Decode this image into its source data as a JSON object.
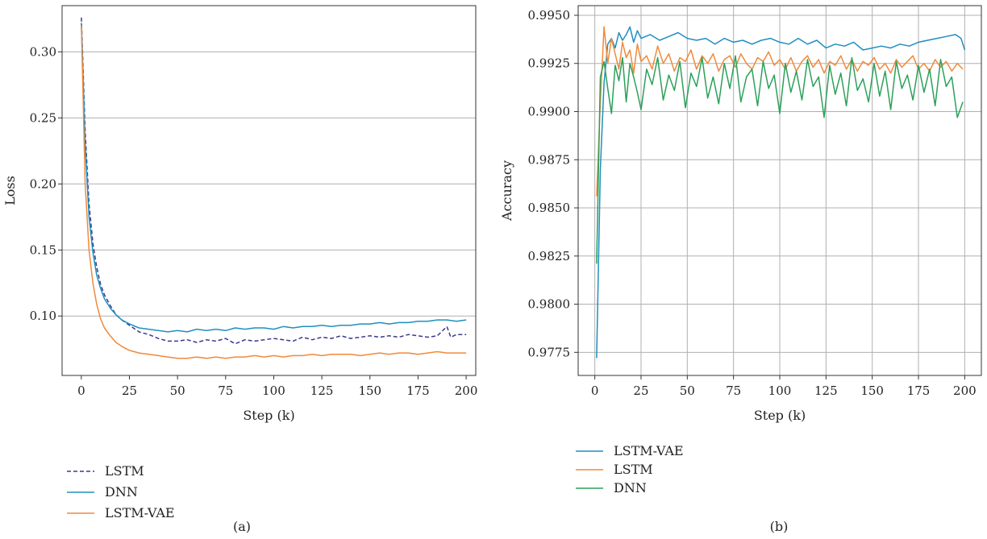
{
  "chart_data": [
    {
      "type": "line",
      "panel_label": "(a)",
      "xlabel": "Step (k)",
      "ylabel": "Loss",
      "xlim": [
        -10,
        205
      ],
      "ylim": [
        0.055,
        0.335
      ],
      "xticks": [
        0,
        25,
        50,
        75,
        100,
        125,
        150,
        175,
        200
      ],
      "xtick_labels": [
        "0",
        "25",
        "50",
        "75",
        "100",
        "125",
        "150",
        "175",
        "200"
      ],
      "yticks": [
        0.1,
        0.15,
        0.2,
        0.25,
        0.3
      ],
      "ytick_labels": [
        "0.10",
        "0.15",
        "0.20",
        "0.25",
        "0.30"
      ],
      "grid": "horizontal",
      "legend_position": "below",
      "series": [
        {
          "name": "LSTM",
          "color": "#3a3a8c",
          "style": "dashed",
          "x": [
            0,
            2,
            4,
            6,
            8,
            10,
            12,
            15,
            18,
            21,
            25,
            30,
            35,
            40,
            45,
            50,
            55,
            60,
            65,
            70,
            75,
            80,
            85,
            90,
            95,
            100,
            105,
            110,
            115,
            120,
            125,
            130,
            135,
            140,
            145,
            150,
            155,
            160,
            165,
            170,
            175,
            180,
            185,
            190,
            192,
            195,
            200
          ],
          "values": [
            0.326,
            0.24,
            0.185,
            0.155,
            0.137,
            0.124,
            0.116,
            0.108,
            0.101,
            0.097,
            0.093,
            0.088,
            0.086,
            0.083,
            0.081,
            0.081,
            0.082,
            0.08,
            0.082,
            0.081,
            0.083,
            0.079,
            0.082,
            0.081,
            0.082,
            0.083,
            0.082,
            0.081,
            0.084,
            0.082,
            0.084,
            0.083,
            0.085,
            0.083,
            0.084,
            0.085,
            0.084,
            0.085,
            0.084,
            0.086,
            0.085,
            0.084,
            0.085,
            0.092,
            0.084,
            0.086,
            0.086
          ]
        },
        {
          "name": "DNN",
          "color": "#1f8fc1",
          "style": "solid",
          "x": [
            0,
            2,
            4,
            6,
            8,
            10,
            12,
            15,
            18,
            21,
            25,
            30,
            35,
            40,
            45,
            50,
            55,
            60,
            65,
            70,
            75,
            80,
            85,
            90,
            95,
            100,
            105,
            110,
            115,
            120,
            125,
            130,
            135,
            140,
            145,
            150,
            155,
            160,
            165,
            170,
            175,
            180,
            185,
            190,
            195,
            200
          ],
          "values": [
            0.322,
            0.23,
            0.175,
            0.148,
            0.131,
            0.121,
            0.113,
            0.106,
            0.101,
            0.097,
            0.094,
            0.091,
            0.09,
            0.089,
            0.088,
            0.089,
            0.088,
            0.09,
            0.089,
            0.09,
            0.089,
            0.091,
            0.09,
            0.091,
            0.091,
            0.09,
            0.092,
            0.091,
            0.092,
            0.092,
            0.093,
            0.092,
            0.093,
            0.093,
            0.094,
            0.094,
            0.095,
            0.094,
            0.095,
            0.095,
            0.096,
            0.096,
            0.097,
            0.097,
            0.096,
            0.097
          ]
        },
        {
          "name": "LSTM-VAE",
          "color": "#f08a3c",
          "style": "solid",
          "x": [
            0,
            2,
            4,
            6,
            8,
            10,
            12,
            15,
            18,
            21,
            25,
            30,
            35,
            40,
            45,
            50,
            55,
            60,
            65,
            70,
            75,
            80,
            85,
            90,
            95,
            100,
            105,
            110,
            115,
            120,
            125,
            130,
            135,
            140,
            145,
            150,
            155,
            160,
            165,
            170,
            175,
            180,
            185,
            190,
            195,
            200
          ],
          "values": [
            0.32,
            0.2,
            0.15,
            0.125,
            0.109,
            0.098,
            0.091,
            0.085,
            0.08,
            0.077,
            0.074,
            0.072,
            0.071,
            0.07,
            0.069,
            0.068,
            0.068,
            0.069,
            0.068,
            0.069,
            0.068,
            0.069,
            0.069,
            0.07,
            0.069,
            0.07,
            0.069,
            0.07,
            0.07,
            0.071,
            0.07,
            0.071,
            0.071,
            0.071,
            0.07,
            0.071,
            0.072,
            0.071,
            0.072,
            0.072,
            0.071,
            0.072,
            0.073,
            0.072,
            0.072,
            0.072
          ]
        }
      ]
    },
    {
      "type": "line",
      "panel_label": "(b)",
      "xlabel": "Step (k)",
      "ylabel": "Accuracy",
      "xlim": [
        -9,
        209
      ],
      "ylim": [
        0.9763,
        0.9955
      ],
      "xticks": [
        0,
        25,
        50,
        75,
        100,
        125,
        150,
        175,
        200
      ],
      "xtick_labels": [
        "0",
        "25",
        "50",
        "75",
        "100",
        "125",
        "150",
        "175",
        "200"
      ],
      "yticks": [
        0.9775,
        0.98,
        0.9825,
        0.985,
        0.9875,
        0.99,
        0.9925,
        0.995
      ],
      "ytick_labels": [
        "0.9775",
        "0.9800",
        "0.9825",
        "0.9850",
        "0.9875",
        "0.9900",
        "0.9925",
        "0.9950"
      ],
      "grid": "both",
      "legend_position": "below",
      "series": [
        {
          "name": "LSTM-VAE",
          "color": "#1f8fc1",
          "style": "solid",
          "x": [
            1,
            3,
            5,
            7,
            9,
            11,
            13,
            15,
            17,
            19,
            21,
            23,
            25,
            30,
            35,
            40,
            45,
            50,
            55,
            60,
            65,
            70,
            75,
            80,
            85,
            90,
            95,
            100,
            105,
            110,
            115,
            120,
            125,
            130,
            135,
            140,
            145,
            150,
            155,
            160,
            165,
            170,
            175,
            180,
            185,
            190,
            195,
            198,
            200
          ],
          "values": [
            0.9772,
            0.987,
            0.9915,
            0.9935,
            0.9938,
            0.9933,
            0.9941,
            0.9937,
            0.994,
            0.9944,
            0.9936,
            0.9942,
            0.9938,
            0.994,
            0.9937,
            0.9939,
            0.9941,
            0.9938,
            0.9937,
            0.9938,
            0.9935,
            0.9938,
            0.9936,
            0.9937,
            0.9935,
            0.9937,
            0.9938,
            0.9936,
            0.9935,
            0.9938,
            0.9935,
            0.9937,
            0.9933,
            0.9935,
            0.9934,
            0.9936,
            0.9932,
            0.9933,
            0.9934,
            0.9933,
            0.9935,
            0.9934,
            0.9936,
            0.9937,
            0.9938,
            0.9939,
            0.994,
            0.9938,
            0.9932
          ]
        },
        {
          "name": "LSTM",
          "color": "#f08a3c",
          "style": "solid",
          "x": [
            1,
            3,
            5,
            7,
            9,
            11,
            13,
            15,
            17,
            19,
            21,
            23,
            25,
            28,
            31,
            34,
            37,
            40,
            43,
            46,
            49,
            52,
            55,
            58,
            61,
            64,
            67,
            70,
            73,
            76,
            79,
            82,
            85,
            88,
            91,
            94,
            97,
            100,
            103,
            106,
            109,
            112,
            115,
            118,
            121,
            124,
            127,
            130,
            133,
            136,
            139,
            142,
            145,
            148,
            151,
            154,
            157,
            160,
            163,
            166,
            169,
            172,
            175,
            178,
            181,
            184,
            187,
            190,
            193,
            196,
            199
          ],
          "values": [
            0.9856,
            0.9905,
            0.9944,
            0.9925,
            0.9938,
            0.993,
            0.9922,
            0.9936,
            0.9928,
            0.9932,
            0.992,
            0.9935,
            0.9926,
            0.9929,
            0.9922,
            0.9934,
            0.9925,
            0.993,
            0.9921,
            0.9928,
            0.9926,
            0.9932,
            0.9922,
            0.9929,
            0.9925,
            0.993,
            0.9921,
            0.9927,
            0.9929,
            0.9923,
            0.993,
            0.9925,
            0.9922,
            0.9928,
            0.9926,
            0.9931,
            0.9924,
            0.9927,
            0.9922,
            0.9928,
            0.9921,
            0.9926,
            0.9929,
            0.9923,
            0.9927,
            0.992,
            0.9926,
            0.9924,
            0.9929,
            0.9922,
            0.9927,
            0.9921,
            0.9926,
            0.9924,
            0.9928,
            0.9922,
            0.9925,
            0.992,
            0.9927,
            0.9923,
            0.9926,
            0.9929,
            0.9922,
            0.9925,
            0.9921,
            0.9927,
            0.9923,
            0.9926,
            0.9921,
            0.9925,
            0.9922
          ]
        },
        {
          "name": "DNN",
          "color": "#2ca05a",
          "style": "solid",
          "x": [
            1,
            3,
            5,
            7,
            9,
            11,
            13,
            15,
            17,
            19,
            21,
            23,
            25,
            28,
            31,
            34,
            37,
            40,
            43,
            46,
            49,
            52,
            55,
            58,
            61,
            64,
            67,
            70,
            73,
            76,
            79,
            82,
            85,
            88,
            91,
            94,
            97,
            100,
            103,
            106,
            109,
            112,
            115,
            118,
            121,
            124,
            127,
            130,
            133,
            136,
            139,
            142,
            145,
            148,
            151,
            154,
            157,
            160,
            163,
            166,
            169,
            172,
            175,
            178,
            181,
            184,
            187,
            190,
            193,
            196,
            199
          ],
          "values": [
            0.9821,
            0.9918,
            0.9926,
            0.9912,
            0.9899,
            0.9924,
            0.9916,
            0.9928,
            0.9905,
            0.9925,
            0.9918,
            0.991,
            0.9901,
            0.9922,
            0.9914,
            0.9928,
            0.9906,
            0.9919,
            0.9911,
            0.9926,
            0.9902,
            0.992,
            0.9913,
            0.9928,
            0.9907,
            0.9918,
            0.9904,
            0.9925,
            0.9912,
            0.9929,
            0.9905,
            0.9918,
            0.9922,
            0.9903,
            0.9926,
            0.9912,
            0.9919,
            0.9899,
            0.9925,
            0.991,
            0.9921,
            0.9906,
            0.9927,
            0.9913,
            0.9918,
            0.9897,
            0.9924,
            0.9909,
            0.992,
            0.9903,
            0.9928,
            0.9911,
            0.9917,
            0.9905,
            0.9925,
            0.9908,
            0.9921,
            0.9901,
            0.9926,
            0.9912,
            0.9919,
            0.9906,
            0.9924,
            0.991,
            0.9922,
            0.9903,
            0.9927,
            0.9913,
            0.9918,
            0.9897,
            0.9905
          ]
        }
      ]
    }
  ]
}
